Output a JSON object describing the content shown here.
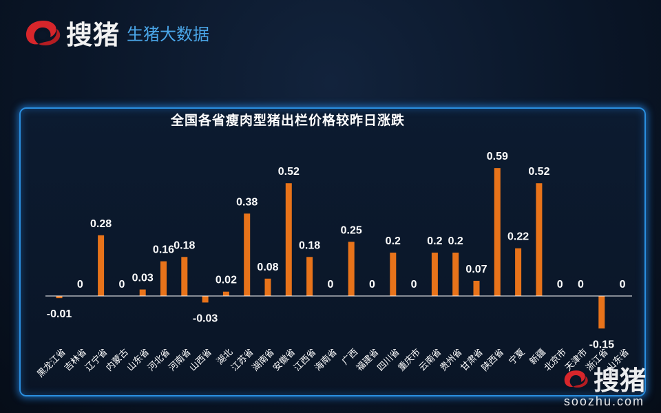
{
  "header": {
    "brand": "搜猪",
    "tagline": "生猪大数据"
  },
  "colors": {
    "bar": "#e8731a",
    "axis": "#ffffff",
    "label": "#ffffff",
    "panel_border": "#2a8fe0",
    "tagline": "#4aa6e8"
  },
  "watermark": {
    "brand": "搜猪",
    "url": "soozhu.com"
  },
  "chart_data": {
    "type": "bar",
    "title": "全国各省瘦肉型猪出栏价格较昨日涨跌",
    "xlabel": "",
    "ylabel": "",
    "categories": [
      "黑龙江省",
      "吉林省",
      "辽宁省",
      "内蒙古",
      "山东省",
      "河北省",
      "河南省",
      "山西省",
      "湖北",
      "江苏省",
      "湖南省",
      "安徽省",
      "江西省",
      "海南省",
      "广西",
      "福建省",
      "四川省",
      "重庆市",
      "云南省",
      "贵州省",
      "甘肃省",
      "陕西省",
      "宁夏",
      "新疆",
      "北京市",
      "天津市",
      "浙江省",
      "山东省"
    ],
    "values": [
      -0.01,
      0,
      0.28,
      0,
      0.03,
      0.16,
      0.18,
      -0.03,
      0.02,
      0.38,
      0.08,
      0.52,
      0.18,
      0,
      0.25,
      0,
      0.2,
      0,
      0.2,
      0.2,
      0.07,
      0.59,
      0.22,
      0.52,
      0,
      0,
      -0.15,
      0
    ],
    "data_labels": [
      "-0.01",
      "0",
      "0.28",
      "0",
      "0.03",
      "0.16",
      "0.18",
      "-0.03",
      "0.02",
      "0.38",
      "0.08",
      "0.52",
      "0.18",
      "0",
      "0.25",
      "0",
      "0.2",
      "0",
      "0.2",
      "0.2",
      "0.07",
      "0.59",
      "0.22",
      "0.52",
      "0",
      "0",
      "-0.15",
      "0"
    ],
    "grid": false,
    "legend": "none"
  }
}
